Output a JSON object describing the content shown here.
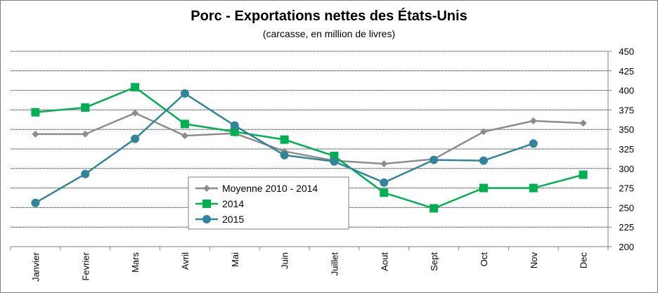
{
  "chart_data": {
    "type": "line",
    "title": "Porc - Exportations nettes des États-Unis",
    "subtitle": "(carcasse, en million de livres)",
    "categories": [
      "Janvier",
      "Fevrier",
      "Mars",
      "Avril",
      "Mai",
      "Juin",
      "Juillet",
      "Aout",
      "Sept",
      "Oct",
      "Nov",
      "Dec"
    ],
    "ylim": [
      200,
      450
    ],
    "yticks": [
      200,
      225,
      250,
      275,
      300,
      325,
      350,
      375,
      400,
      425,
      450
    ],
    "grid": true,
    "legend_placement": "lower-left",
    "series": [
      {
        "name": "Moyenne 2010 - 2014",
        "color": "#8c8c8c",
        "marker": "diamond",
        "values": [
          344,
          344,
          371,
          342,
          345,
          322,
          310,
          306,
          312,
          347,
          361,
          358
        ]
      },
      {
        "name": "2014",
        "color": "#00b050",
        "marker": "square",
        "values": [
          372,
          378,
          404,
          357,
          347,
          337,
          316,
          269,
          249,
          275,
          275,
          292
        ]
      },
      {
        "name": "2015",
        "color": "#31849b",
        "marker": "circle",
        "values": [
          256,
          293,
          338,
          396,
          355,
          317,
          309,
          282,
          311,
          310,
          332,
          null
        ]
      }
    ]
  }
}
